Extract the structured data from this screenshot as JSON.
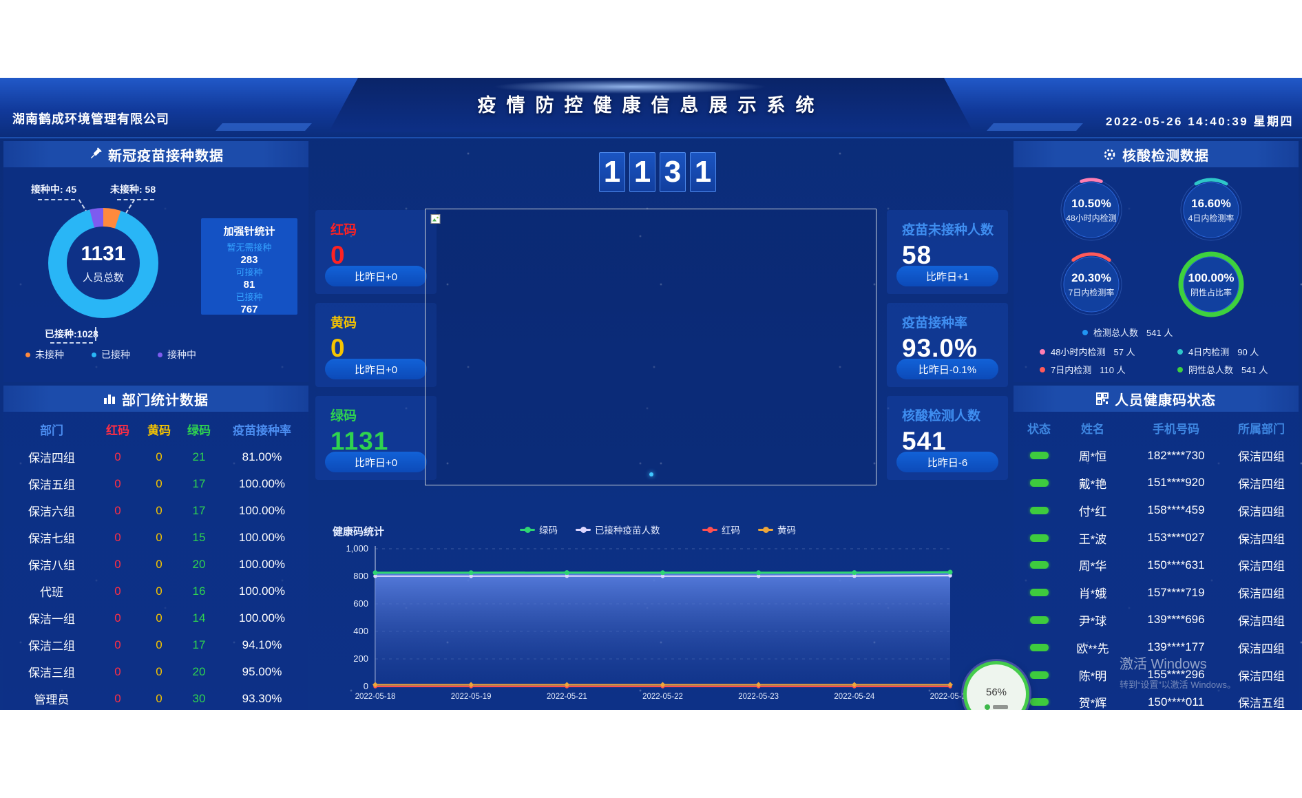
{
  "header": {
    "company": "湖南鹤成环境管理有限公司",
    "title": "疫情防控健康信息展示系统",
    "datetime": "2022-05-26 14:40:39 星期四"
  },
  "vaccine_panel": {
    "title": "新冠疫苗接种数据",
    "donut": {
      "total": "1131",
      "total_label": "人员总数",
      "segments": [
        {
          "label": "未接种",
          "value": 58,
          "color": "#ff8a3d"
        },
        {
          "label": "已接种",
          "value": 1028,
          "color": "#29b6f6"
        },
        {
          "label": "接种中",
          "value": 45,
          "color": "#7d5cf0"
        }
      ],
      "callout_in_progress": "接种中: 45",
      "callout_not_vaccinated": "未接种: 58",
      "callout_vaccinated": "已接种:1028"
    },
    "booster": {
      "title": "加强针统计",
      "items": [
        {
          "label": "暂无需接种",
          "value": "283"
        },
        {
          "label": "可接种",
          "value": "81"
        },
        {
          "label": "已接种",
          "value": "767"
        }
      ]
    }
  },
  "dept_panel": {
    "title": "部门统计数据",
    "columns": [
      "部门",
      "红码",
      "黄码",
      "绿码",
      "疫苗接种率"
    ],
    "column_colors": [
      "#4b8df0",
      "#ff2e44",
      "#f5c400",
      "#2fd34f",
      "#4b8df0"
    ],
    "cell_colors": [
      "#ffffff",
      "#ff2e44",
      "#f5c400",
      "#2fd34f",
      "#ffffff"
    ],
    "rows": [
      [
        "保洁四组",
        "0",
        "0",
        "21",
        "81.00%"
      ],
      [
        "保洁五组",
        "0",
        "0",
        "17",
        "100.00%"
      ],
      [
        "保洁六组",
        "0",
        "0",
        "17",
        "100.00%"
      ],
      [
        "保洁七组",
        "0",
        "0",
        "15",
        "100.00%"
      ],
      [
        "保洁八组",
        "0",
        "0",
        "20",
        "100.00%"
      ],
      [
        "代班",
        "0",
        "0",
        "16",
        "100.00%"
      ],
      [
        "保洁一组",
        "0",
        "0",
        "14",
        "100.00%"
      ],
      [
        "保洁二组",
        "0",
        "0",
        "17",
        "94.10%"
      ],
      [
        "保洁三组",
        "0",
        "0",
        "20",
        "95.00%"
      ],
      [
        "管理员",
        "0",
        "0",
        "30",
        "93.30%"
      ]
    ]
  },
  "center": {
    "big_number": [
      "1",
      "1",
      "3",
      "1"
    ],
    "left_stats": [
      {
        "label": "红码",
        "value": "0",
        "delta": "比昨日+0",
        "color": "#ff2222"
      },
      {
        "label": "黄码",
        "value": "0",
        "delta": "比昨日+0",
        "color": "#f5c400"
      },
      {
        "label": "绿码",
        "value": "1131",
        "delta": "比昨日+0",
        "color": "#2fd34f"
      }
    ],
    "right_stats": [
      {
        "label": "疫苗未接种人数",
        "value": "58",
        "delta": "比昨日+1"
      },
      {
        "label": "疫苗接种率",
        "value": "93.0%",
        "delta": "比昨日-0.1%"
      },
      {
        "label": "核酸检测人数",
        "value": "541",
        "delta": "比昨日-6"
      }
    ]
  },
  "nucleic_panel": {
    "title": "核酸检测数据",
    "gauges": [
      {
        "value": "10.50%",
        "label": "48小时内检测",
        "pct": 10.5,
        "color": "#ff7eb3"
      },
      {
        "value": "16.60%",
        "label": "4日内检测率",
        "pct": 16.6,
        "color": "#2ec7c9"
      },
      {
        "value": "20.30%",
        "label": "7日内检测率",
        "pct": 20.3,
        "color": "#ff5a5a"
      },
      {
        "value": "100.00%",
        "label": "阴性占比率",
        "pct": 100,
        "color": "#3ed13e"
      }
    ],
    "legend": [
      {
        "label": "检测总人数",
        "value": "541 人",
        "color": "#2196f3"
      },
      {
        "label": "48小时内检测",
        "value": "57 人",
        "color": "#ff7eb3"
      },
      {
        "label": "4日内检测",
        "value": "90 人",
        "color": "#2ec7c9"
      },
      {
        "label": "7日内检测",
        "value": "110 人",
        "color": "#ff5a5a"
      },
      {
        "label": "阴性总人数",
        "value": "541 人",
        "color": "#3ed13e"
      }
    ]
  },
  "health_panel": {
    "title": "人员健康码状态",
    "columns": [
      "状态",
      "姓名",
      "手机号码",
      "所属部门"
    ],
    "status_color": "#3ecb3e",
    "rows": [
      {
        "name": "周*恒",
        "phone": "182****730",
        "dept": "保洁四组"
      },
      {
        "name": "戴*艳",
        "phone": "151****920",
        "dept": "保洁四组"
      },
      {
        "name": "付*红",
        "phone": "158****459",
        "dept": "保洁四组"
      },
      {
        "name": "王*波",
        "phone": "153****027",
        "dept": "保洁四组"
      },
      {
        "name": "周*华",
        "phone": "150****631",
        "dept": "保洁四组"
      },
      {
        "name": "肖*娥",
        "phone": "157****719",
        "dept": "保洁四组"
      },
      {
        "name": "尹*球",
        "phone": "139****696",
        "dept": "保洁四组"
      },
      {
        "name": "欧**先",
        "phone": "139****177",
        "dept": "保洁四组"
      },
      {
        "name": "陈*明",
        "phone": "155****296",
        "dept": "保洁四组"
      },
      {
        "name": "贺*辉",
        "phone": "150****011",
        "dept": "保洁五组"
      }
    ]
  },
  "chart_data": {
    "type": "line",
    "title": "健康码统计",
    "x": [
      "2022-05-18",
      "2022-05-19",
      "2022-05-21",
      "2022-05-22",
      "2022-05-23",
      "2022-05-24",
      "2022-05-25"
    ],
    "ylim": [
      0,
      1000
    ],
    "yticks": [
      0,
      200,
      400,
      600,
      800,
      1000
    ],
    "legend_position": "top",
    "grid": true,
    "series": [
      {
        "name": "绿码",
        "color": "#2fd573",
        "marker": "circle",
        "area": true,
        "values": [
          826,
          826,
          827,
          826,
          826,
          827,
          830
        ]
      },
      {
        "name": "已接种疫苗人数",
        "color": "#dcd6ff",
        "marker": "circle",
        "values": [
          801,
          801,
          802,
          801,
          801,
          802,
          805
        ]
      },
      {
        "name": "红码",
        "color": "#ff5050",
        "marker": "circle",
        "values": [
          0,
          0,
          0,
          0,
          0,
          0,
          0
        ]
      },
      {
        "name": "黄码",
        "color": "#eda63a",
        "marker": "diamond",
        "values": [
          0,
          0,
          0,
          0,
          0,
          0,
          0
        ]
      }
    ]
  },
  "badge": {
    "value": "56",
    "unit": "%"
  },
  "watermark": {
    "line1": "激活 Windows",
    "line2": "转到“设置”以激活 Windows。"
  }
}
